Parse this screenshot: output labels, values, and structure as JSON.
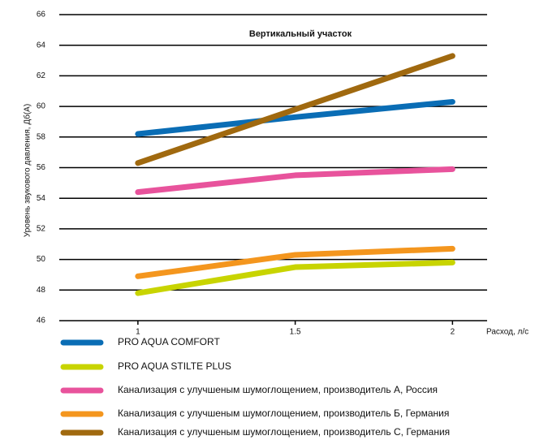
{
  "chart_data": {
    "type": "line",
    "title": "Вертикальный участок",
    "y_label": "Уровень звукового давления, Дб(А)",
    "x_label": "Расход, л/с",
    "x": [
      1,
      1.5,
      2
    ],
    "xlim": [
      0.75,
      2.11
    ],
    "xticks": [
      1,
      1.5,
      2
    ],
    "ylim": [
      46,
      66
    ],
    "yticks": [
      46,
      48,
      50,
      52,
      54,
      56,
      58,
      60,
      62,
      64,
      66
    ],
    "grid": true,
    "legend": "bottom",
    "series": [
      {
        "name": "PRO AQUA COMFORT",
        "color": "#0a6db5",
        "values": [
          58.2,
          59.3,
          60.3
        ]
      },
      {
        "name": "PRO AQUA  STILTE PLUS",
        "color": "#c8d400",
        "values": [
          47.8,
          49.5,
          49.8
        ]
      },
      {
        "name": "Канализация с улучшеным шумоглощением, производитель А, Россия",
        "color": "#e8539c",
        "values": [
          54.4,
          55.5,
          55.9
        ]
      },
      {
        "name": "Канализация с улучшеным шумоглощением, производитель Б, Германия",
        "color": "#f4961e",
        "values": [
          48.9,
          50.3,
          50.7
        ]
      },
      {
        "name": "Канализация с улучшеным шумоглощением, производитель С, Германия",
        "color": "#a0690f",
        "values": [
          56.3,
          59.8,
          63.3
        ]
      }
    ]
  }
}
